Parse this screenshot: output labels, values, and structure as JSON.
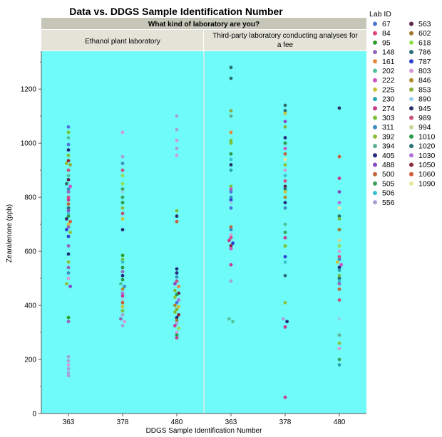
{
  "chart_data": {
    "type": "scatter",
    "title": "Data vs. DDGS Sample Identification Number",
    "facet_title": "What kind of laboratory are you?",
    "panels": [
      {
        "label": "Ethanol plant laboratory",
        "categories": [
          "363",
          "378",
          "480"
        ]
      },
      {
        "label": "Third-party laboratory conducting analyses for a fee",
        "label_lines": [
          "Third-party laboratory conducting analyses for",
          "a fee"
        ],
        "categories": [
          "363",
          "378",
          "480"
        ]
      }
    ],
    "xlabel": "DDGS Sample Identification Number",
    "ylabel": "Zearalenone (ppb)",
    "ylim": [
      0,
      1340
    ],
    "yticks": [
      0,
      200,
      400,
      600,
      800,
      1000,
      1200
    ],
    "plot_background": "#6ffbf7",
    "legend": {
      "title": "Lab ID",
      "placement": "right",
      "entries": [
        {
          "label": "67",
          "color": "#4f73d9"
        },
        {
          "label": "84",
          "color": "#e2457a"
        },
        {
          "label": "95",
          "color": "#2ca02c"
        },
        {
          "label": "148",
          "color": "#9467bd"
        },
        {
          "label": "161",
          "color": "#e8873a"
        },
        {
          "label": "202",
          "color": "#4fc29d"
        },
        {
          "label": "222",
          "color": "#d14fc2"
        },
        {
          "label": "225",
          "color": "#c9c23a"
        },
        {
          "label": "230",
          "color": "#2aa6b3"
        },
        {
          "label": "274",
          "color": "#c93a8f"
        },
        {
          "label": "303",
          "color": "#7ac23a"
        },
        {
          "label": "311",
          "color": "#3a8fc2"
        },
        {
          "label": "392",
          "color": "#8fbf3a"
        },
        {
          "label": "394",
          "color": "#5fae8f"
        },
        {
          "label": "405",
          "color": "#232a7a"
        },
        {
          "label": "488",
          "color": "#8a48c2"
        },
        {
          "label": "500",
          "color": "#c2643a"
        },
        {
          "label": "505",
          "color": "#3aa35a"
        },
        {
          "label": "506",
          "color": "#3ac2d1"
        },
        {
          "label": "556",
          "color": "#a5a0d8"
        },
        {
          "label": "563",
          "color": "#5c2448"
        },
        {
          "label": "602",
          "color": "#a0782e"
        },
        {
          "label": "618",
          "color": "#90e050"
        },
        {
          "label": "786",
          "color": "#2e6e78"
        },
        {
          "label": "787",
          "color": "#2d3ed1"
        },
        {
          "label": "803",
          "color": "#d49ad8"
        },
        {
          "label": "846",
          "color": "#b08a2a"
        },
        {
          "label": "853",
          "color": "#8ab040"
        },
        {
          "label": "890",
          "color": "#98d0e8"
        },
        {
          "label": "945",
          "color": "#283068"
        },
        {
          "label": "989",
          "color": "#c8507a"
        },
        {
          "label": "994",
          "color": "#c8d898"
        },
        {
          "label": "1010",
          "color": "#2a9a4a"
        },
        {
          "label": "1020",
          "color": "#2a7070"
        },
        {
          "label": "1030",
          "color": "#b070d8"
        },
        {
          "label": "1050",
          "color": "#8a2a3a"
        },
        {
          "label": "1060",
          "color": "#d05a3a"
        },
        {
          "label": "1090",
          "color": "#e8e8a0"
        }
      ]
    },
    "groups": [
      {
        "panel": 0,
        "category": "363",
        "points": [
          [
            1060,
            0
          ],
          [
            1040,
            10
          ],
          [
            1020,
            5
          ],
          [
            995,
            38
          ],
          [
            975,
            14
          ],
          [
            955,
            10
          ],
          [
            935,
            35
          ],
          [
            925,
            12
          ],
          [
            920,
            27
          ],
          [
            900,
            30
          ],
          [
            880,
            5
          ],
          [
            865,
            20
          ],
          [
            850,
            33
          ],
          [
            840,
            6
          ],
          [
            830,
            11
          ],
          [
            820,
            3
          ],
          [
            800,
            1
          ],
          [
            790,
            9
          ],
          [
            775,
            16
          ],
          [
            760,
            23
          ],
          [
            750,
            15
          ],
          [
            740,
            18
          ],
          [
            730,
            32
          ],
          [
            720,
            29
          ],
          [
            710,
            36
          ],
          [
            700,
            7
          ],
          [
            690,
            3
          ],
          [
            680,
            24
          ],
          [
            670,
            12
          ],
          [
            655,
            24
          ],
          [
            620,
            3
          ],
          [
            590,
            14
          ],
          [
            560,
            12
          ],
          [
            540,
            3
          ],
          [
            520,
            11
          ],
          [
            500,
            25
          ],
          [
            480,
            12
          ],
          [
            470,
            15
          ],
          [
            355,
            2
          ],
          [
            340,
            3
          ],
          [
            210,
            19
          ],
          [
            195,
            19
          ],
          [
            180,
            25
          ],
          [
            165,
            19
          ],
          [
            150,
            19
          ],
          [
            140,
            19
          ]
        ]
      },
      {
        "panel": 0,
        "category": "378",
        "points": [
          [
            1040,
            25
          ],
          [
            950,
            19
          ],
          [
            925,
            11
          ],
          [
            900,
            30
          ],
          [
            880,
            22
          ],
          [
            850,
            22
          ],
          [
            830,
            17
          ],
          [
            820,
            28
          ],
          [
            800,
            17
          ],
          [
            780,
            32
          ],
          [
            760,
            12
          ],
          [
            740,
            30
          ],
          [
            720,
            7
          ],
          [
            680,
            14
          ],
          [
            585,
            2
          ],
          [
            570,
            10
          ],
          [
            560,
            18
          ],
          [
            540,
            32
          ],
          [
            525,
            3
          ],
          [
            510,
            14
          ],
          [
            495,
            32
          ],
          [
            480,
            5
          ],
          [
            470,
            11
          ],
          [
            460,
            26
          ],
          [
            445,
            34
          ],
          [
            435,
            9
          ],
          [
            420,
            28
          ],
          [
            410,
            16
          ],
          [
            395,
            7
          ],
          [
            380,
            10
          ],
          [
            365,
            19
          ],
          [
            350,
            3
          ],
          [
            340,
            25
          ],
          [
            325,
            19
          ]
        ]
      },
      {
        "panel": 0,
        "category": "480",
        "points": [
          [
            1100,
            19
          ],
          [
            1050,
            19
          ],
          [
            1010,
            25
          ],
          [
            980,
            19
          ],
          [
            955,
            25
          ],
          [
            750,
            10
          ],
          [
            730,
            29
          ],
          [
            710,
            36
          ],
          [
            535,
            14
          ],
          [
            520,
            14
          ],
          [
            505,
            11
          ],
          [
            490,
            30
          ],
          [
            480,
            15
          ],
          [
            470,
            4
          ],
          [
            455,
            10
          ],
          [
            445,
            20
          ],
          [
            440,
            32
          ],
          [
            430,
            12
          ],
          [
            420,
            34
          ],
          [
            410,
            38
          ],
          [
            400,
            26
          ],
          [
            395,
            7
          ],
          [
            385,
            27
          ],
          [
            375,
            10
          ],
          [
            365,
            35
          ],
          [
            355,
            14
          ],
          [
            345,
            21
          ],
          [
            335,
            19
          ],
          [
            325,
            9
          ],
          [
            315,
            22
          ],
          [
            300,
            25
          ],
          [
            290,
            32
          ],
          [
            280,
            9
          ]
        ]
      },
      {
        "panel": 1,
        "category": "363",
        "points": [
          [
            1280,
            33
          ],
          [
            1240,
            33
          ],
          [
            1120,
            27
          ],
          [
            1100,
            13
          ],
          [
            1040,
            4
          ],
          [
            1010,
            10
          ],
          [
            1000,
            10
          ],
          [
            960,
            32
          ],
          [
            940,
            18
          ],
          [
            920,
            29
          ],
          [
            900,
            8
          ],
          [
            840,
            10
          ],
          [
            830,
            6
          ],
          [
            820,
            38
          ],
          [
            800,
            11
          ],
          [
            790,
            24
          ],
          [
            780,
            28
          ],
          [
            760,
            0
          ],
          [
            690,
            16
          ],
          [
            680,
            11
          ],
          [
            660,
            25
          ],
          [
            650,
            30
          ],
          [
            640,
            9
          ],
          [
            630,
            24
          ],
          [
            620,
            35
          ],
          [
            610,
            6
          ],
          [
            550,
            9
          ],
          [
            490,
            19
          ],
          [
            350,
            5
          ],
          [
            340,
            5
          ]
        ]
      },
      {
        "panel": 1,
        "category": "378",
        "points": [
          [
            1140,
            33
          ],
          [
            1120,
            33
          ],
          [
            1110,
            7
          ],
          [
            1080,
            15
          ],
          [
            1060,
            27
          ],
          [
            1020,
            14
          ],
          [
            1000,
            32
          ],
          [
            980,
            6
          ],
          [
            960,
            16
          ],
          [
            940,
            37
          ],
          [
            920,
            12
          ],
          [
            900,
            25
          ],
          [
            880,
            18
          ],
          [
            860,
            1
          ],
          [
            840,
            20
          ],
          [
            830,
            33
          ],
          [
            820,
            7
          ],
          [
            800,
            26
          ],
          [
            780,
            14
          ],
          [
            760,
            11
          ],
          [
            700,
            5
          ],
          [
            670,
            17
          ],
          [
            650,
            9
          ],
          [
            620,
            10
          ],
          [
            580,
            24
          ],
          [
            560,
            18
          ],
          [
            510,
            23
          ],
          [
            410,
            12
          ],
          [
            350,
            19
          ],
          [
            340,
            14
          ],
          [
            320,
            9
          ],
          [
            60,
            9
          ]
        ]
      },
      {
        "panel": 1,
        "category": "480",
        "points": [
          [
            1130,
            29
          ],
          [
            950,
            36
          ],
          [
            870,
            9
          ],
          [
            820,
            15
          ],
          [
            780,
            34
          ],
          [
            760,
            37
          ],
          [
            730,
            33
          ],
          [
            720,
            10
          ],
          [
            680,
            21
          ],
          [
            640,
            31
          ],
          [
            620,
            22
          ],
          [
            600,
            25
          ],
          [
            580,
            1
          ],
          [
            570,
            11
          ],
          [
            560,
            7
          ],
          [
            550,
            6
          ],
          [
            540,
            14
          ],
          [
            530,
            8
          ],
          [
            510,
            10
          ],
          [
            500,
            23
          ],
          [
            490,
            18
          ],
          [
            480,
            3
          ],
          [
            460,
            16
          ],
          [
            420,
            30
          ],
          [
            350,
            28
          ],
          [
            290,
            13
          ],
          [
            260,
            12
          ],
          [
            240,
            25
          ],
          [
            200,
            17
          ],
          [
            180,
            8
          ]
        ]
      }
    ]
  }
}
